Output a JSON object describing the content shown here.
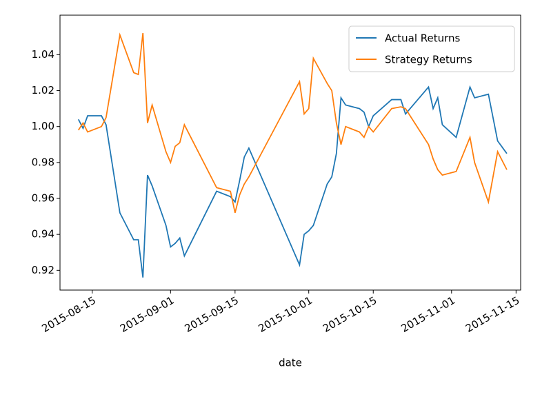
{
  "chart_data": {
    "type": "line",
    "xlabel": "date",
    "x": [
      "2015-08-12",
      "2015-08-13",
      "2015-08-14",
      "2015-08-17",
      "2015-08-18",
      "2015-08-21",
      "2015-08-24",
      "2015-08-25",
      "2015-08-26",
      "2015-08-27",
      "2015-08-28",
      "2015-08-31",
      "2015-09-01",
      "2015-09-02",
      "2015-09-03",
      "2015-09-04",
      "2015-09-11",
      "2015-09-14",
      "2015-09-15",
      "2015-09-16",
      "2015-09-17",
      "2015-09-18",
      "2015-09-29",
      "2015-09-30",
      "2015-10-01",
      "2015-10-02",
      "2015-10-05",
      "2015-10-06",
      "2015-10-07",
      "2015-10-08",
      "2015-10-09",
      "2015-10-12",
      "2015-10-13",
      "2015-10-14",
      "2015-10-15",
      "2015-10-19",
      "2015-10-21",
      "2015-10-22",
      "2015-10-27",
      "2015-10-28",
      "2015-10-29",
      "2015-10-30",
      "2015-11-02",
      "2015-11-05",
      "2015-11-06",
      "2015-11-09",
      "2015-11-11",
      "2015-11-13"
    ],
    "series": [
      {
        "name": "Actual Returns",
        "color": "#1f77b4",
        "values": [
          1.004,
          0.999,
          1.006,
          1.006,
          1.001,
          0.952,
          0.937,
          0.937,
          0.916,
          0.973,
          0.967,
          0.945,
          0.933,
          0.935,
          0.938,
          0.928,
          0.964,
          0.961,
          0.958,
          0.97,
          0.983,
          0.988,
          0.923,
          0.94,
          0.942,
          0.945,
          0.968,
          0.972,
          0.985,
          1.016,
          1.012,
          1.01,
          1.008,
          1.0,
          1.006,
          1.015,
          1.015,
          1.007,
          1.022,
          1.01,
          1.016,
          1.001,
          0.994,
          1.022,
          1.016,
          1.018,
          0.992,
          0.985
        ]
      },
      {
        "name": "Strategy Returns",
        "color": "#ff7f0e",
        "values": [
          0.998,
          1.002,
          0.997,
          1.0,
          1.005,
          1.051,
          1.03,
          1.029,
          1.052,
          1.002,
          1.012,
          0.986,
          0.98,
          0.989,
          0.991,
          1.001,
          0.966,
          0.964,
          0.952,
          0.962,
          0.968,
          0.972,
          1.025,
          1.007,
          1.01,
          1.038,
          1.024,
          1.02,
          1.002,
          0.99,
          1.0,
          0.997,
          0.994,
          1.0,
          0.997,
          1.01,
          1.011,
          1.01,
          0.99,
          0.982,
          0.976,
          0.973,
          0.975,
          0.994,
          0.98,
          0.958,
          0.986,
          0.976
        ]
      }
    ],
    "xlim": [
      "2015-08-08",
      "2015-11-16"
    ],
    "xticks": [
      "2015-08-15",
      "2015-09-01",
      "2015-09-15",
      "2015-10-01",
      "2015-10-15",
      "2015-11-01",
      "2015-11-15"
    ],
    "ylim": [
      0.909,
      1.062
    ],
    "yticks": [
      0.92,
      0.94,
      0.96,
      0.98,
      {
        "value": 1.0,
        "label": "1.00"
      },
      1.02,
      1.04
    ],
    "legend": "upper right",
    "grid": false
  }
}
